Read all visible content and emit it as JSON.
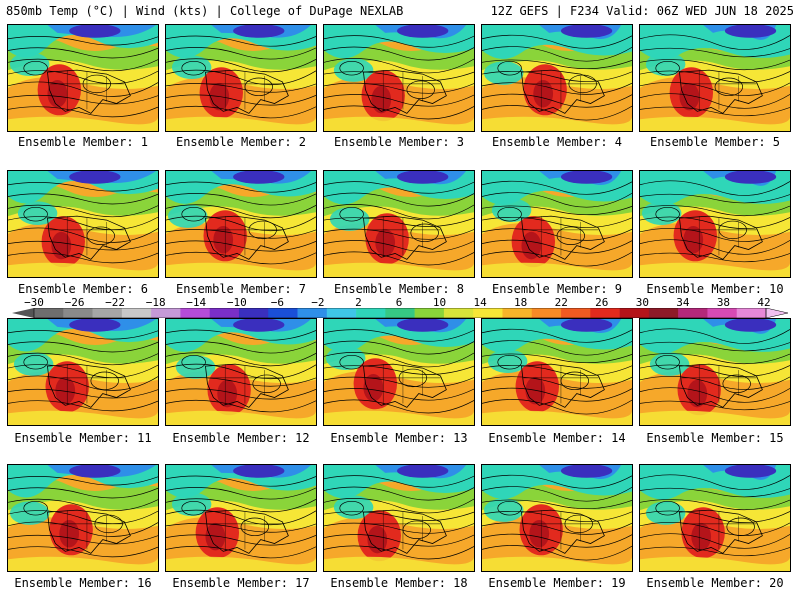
{
  "header": {
    "left": "850mb Temp (°C) | Wind (kts) | College of DuPage NEXLAB",
    "right": "12Z GEFS | F234 Valid: 06Z WED JUN 18 2025"
  },
  "member_prefix": "Ensemble Member:",
  "members": [
    "1",
    "2",
    "3",
    "4",
    "5",
    "6",
    "7",
    "8",
    "9",
    "10",
    "11",
    "12",
    "13",
    "14",
    "15",
    "16",
    "17",
    "18",
    "19",
    "20"
  ],
  "colorbar": {
    "ticks": [
      "−30",
      "−26",
      "−22",
      "−18",
      "−14",
      "−10",
      "−6",
      "−2",
      "2",
      "6",
      "10",
      "14",
      "18",
      "22",
      "26",
      "30",
      "34",
      "38",
      "42"
    ],
    "colors": [
      "#6e6e6e",
      "#8a8a8a",
      "#a6a6a6",
      "#c8c8c8",
      "#c69ad8",
      "#b44cd8",
      "#7a2fc8",
      "#3a2fbe",
      "#1a4fd8",
      "#2f8fe8",
      "#3fc6e8",
      "#2fd6b8",
      "#36c884",
      "#8ad43a",
      "#d8e43a",
      "#f6e636",
      "#f6b42a",
      "#f68a26",
      "#f05a22",
      "#e22a1e",
      "#b4141a",
      "#8e1a28",
      "#b4287a",
      "#d64ab4",
      "#e688d8"
    ]
  },
  "palette": {
    "cold": "#3a2fbe",
    "cool": "#2f8fe8",
    "teal": "#2fd6b8",
    "green": "#8ad43a",
    "yellow": "#f6e636",
    "orange": "#f6a82a",
    "red": "#e22a1e",
    "darkred": "#b4141a"
  }
}
